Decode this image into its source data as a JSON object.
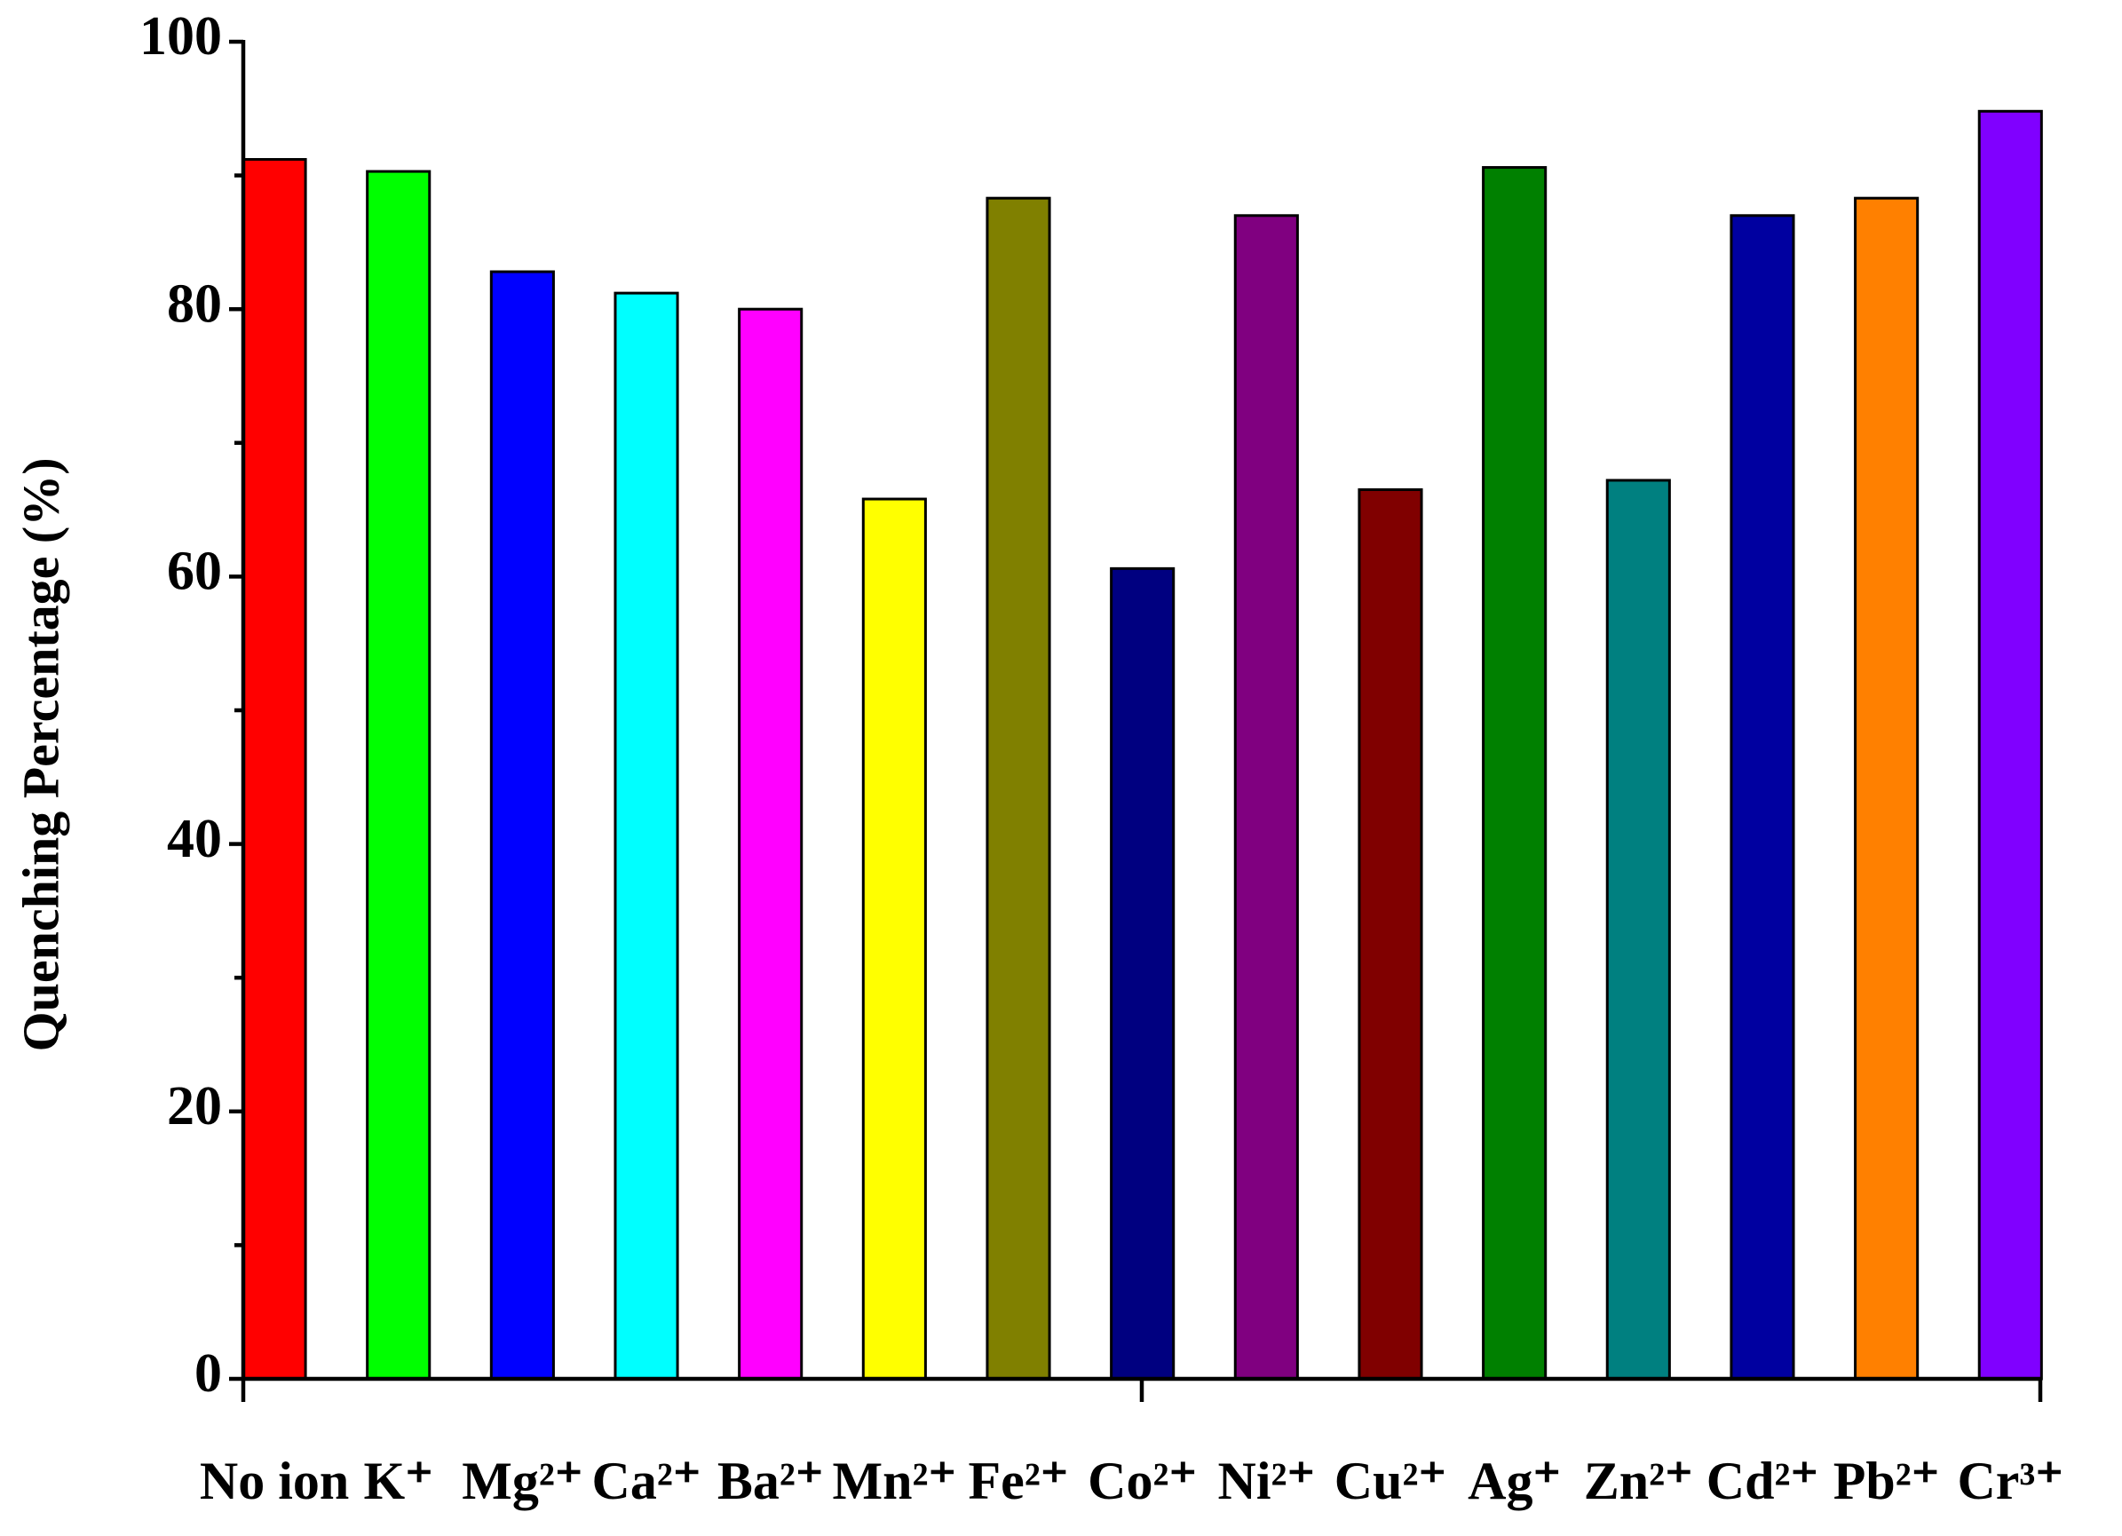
{
  "chart_data": {
    "type": "bar",
    "y_label": "Quenching Percentage (%)",
    "categories": [
      "No ion",
      "K⁺",
      "Mg²⁺",
      "Ca²⁺",
      "Ba²⁺",
      "Mn²⁺",
      "Fe²⁺",
      "Co²⁺",
      "Ni²⁺",
      "Cu²⁺",
      "Ag⁺",
      "Zn²⁺",
      "Cd²⁺",
      "Pb²⁺",
      "Cr³⁺"
    ],
    "values": [
      91.2,
      90.3,
      82.8,
      81.2,
      80.0,
      65.8,
      88.3,
      60.6,
      87.0,
      66.5,
      90.6,
      67.2,
      87.0,
      88.3,
      94.8
    ],
    "colors": [
      "#ff0000",
      "#00ff00",
      "#0000ff",
      "#00ffff",
      "#ff00ff",
      "#ffff00",
      "#808000",
      "#000080",
      "#800080",
      "#800000",
      "#008000",
      "#008080",
      "#0000a0",
      "#ff8000",
      "#8000ff"
    ],
    "ylim": [
      0,
      100
    ],
    "yticks": [
      0,
      20,
      40,
      60,
      80,
      100
    ],
    "yminorticks": [
      10,
      30,
      50,
      70,
      90
    ]
  }
}
